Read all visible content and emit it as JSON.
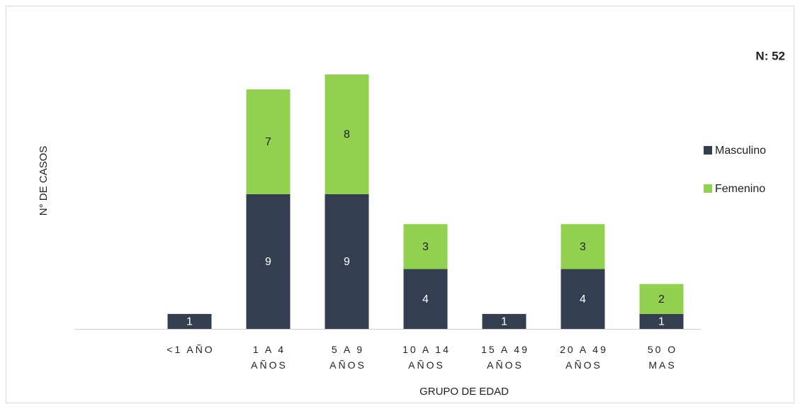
{
  "chart_data": {
    "type": "stacked_bar",
    "annotation": "N: 52",
    "y_axis_label": "N° DE CASOS",
    "x_axis_label": "GRUPO DE EDAD",
    "categories": [
      "<1 AÑO",
      "1 A 4 AÑOS",
      "5 A 9 AÑOS",
      "10 A 14 AÑOS",
      "15 A 49 AÑOS",
      "20 A 49 AÑOS",
      "50 O MAS"
    ],
    "series": [
      {
        "name": "Masculino",
        "color": "#333f50",
        "label_color": "#ffffff",
        "values": [
          1,
          9,
          9,
          4,
          1,
          4,
          1
        ]
      },
      {
        "name": "Femenino",
        "color": "#92d050",
        "label_color": "#222222",
        "values": [
          null,
          7,
          8,
          3,
          null,
          3,
          2
        ]
      }
    ],
    "ylim": [
      0,
      17
    ]
  }
}
